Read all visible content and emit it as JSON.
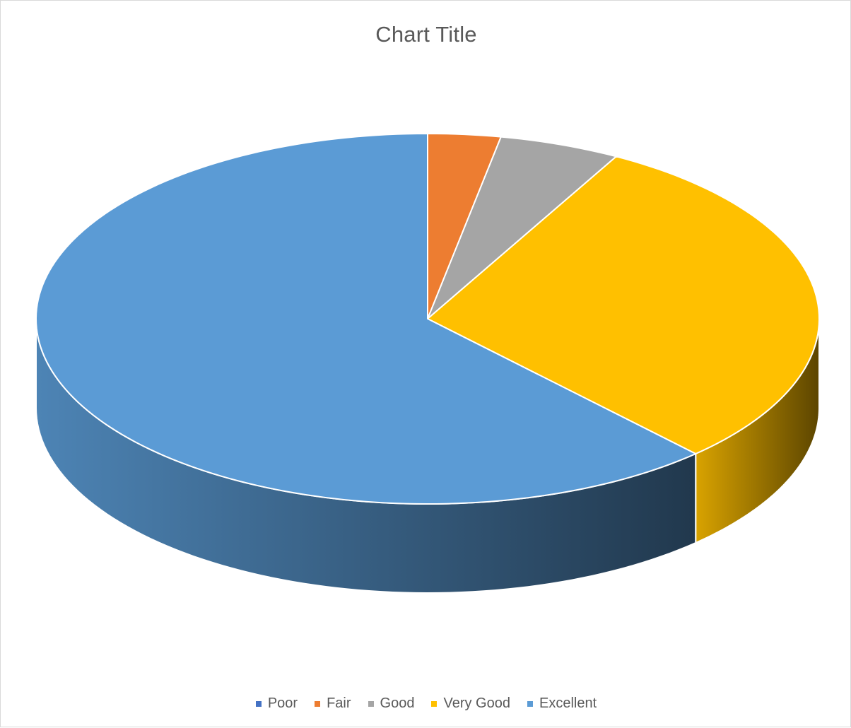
{
  "chart_data": {
    "type": "pie",
    "variant": "3d",
    "title": "Chart Title",
    "categories": [
      "Poor",
      "Fair",
      "Good",
      "Very Good",
      "Excellent"
    ],
    "values": [
      0,
      3,
      5,
      30,
      62
    ],
    "colors": [
      "#4472c4",
      "#ed7d31",
      "#a5a5a5",
      "#ffc000",
      "#5b9bd5"
    ],
    "legend_position": "bottom"
  }
}
